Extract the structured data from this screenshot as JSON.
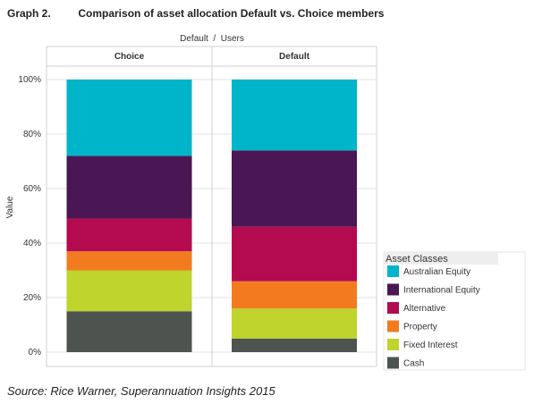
{
  "header": {
    "graph_number": "Graph 2.",
    "title": "Comparison of asset allocation Default vs. Choice members"
  },
  "source": "Source: Rice Warner, Superannuation Insights 2015",
  "chart_data": {
    "type": "bar",
    "stacked": true,
    "column_header": "Default  /  Users",
    "categories": [
      "Choice",
      "Default"
    ],
    "ylabel": "Value",
    "xlabel": "",
    "ylim": [
      0,
      100
    ],
    "y_ticks": [
      {
        "value": 0,
        "label": "0%"
      },
      {
        "value": 20,
        "label": "20%"
      },
      {
        "value": 40,
        "label": "40%"
      },
      {
        "value": 60,
        "label": "60%"
      },
      {
        "value": 80,
        "label": "80%"
      },
      {
        "value": 100,
        "label": "100%"
      }
    ],
    "grid": true,
    "legend_title": "Asset Classes",
    "legend_position": "right",
    "series": [
      {
        "name": "Cash",
        "color": "#4d5450",
        "values": [
          15,
          5
        ]
      },
      {
        "name": "Fixed Interest",
        "color": "#bfd42c",
        "values": [
          15,
          11
        ]
      },
      {
        "name": "Property",
        "color": "#f27b20",
        "values": [
          7,
          10
        ]
      },
      {
        "name": "Alternative",
        "color": "#b40a4f",
        "values": [
          12,
          20
        ]
      },
      {
        "name": "International Equity",
        "color": "#4a1653",
        "values": [
          23,
          28
        ]
      },
      {
        "name": "Australian Equity",
        "color": "#00b5c9",
        "values": [
          28,
          26
        ]
      }
    ],
    "legend_order": [
      "Australian Equity",
      "International Equity",
      "Alternative",
      "Property",
      "Fixed Interest",
      "Cash"
    ]
  }
}
